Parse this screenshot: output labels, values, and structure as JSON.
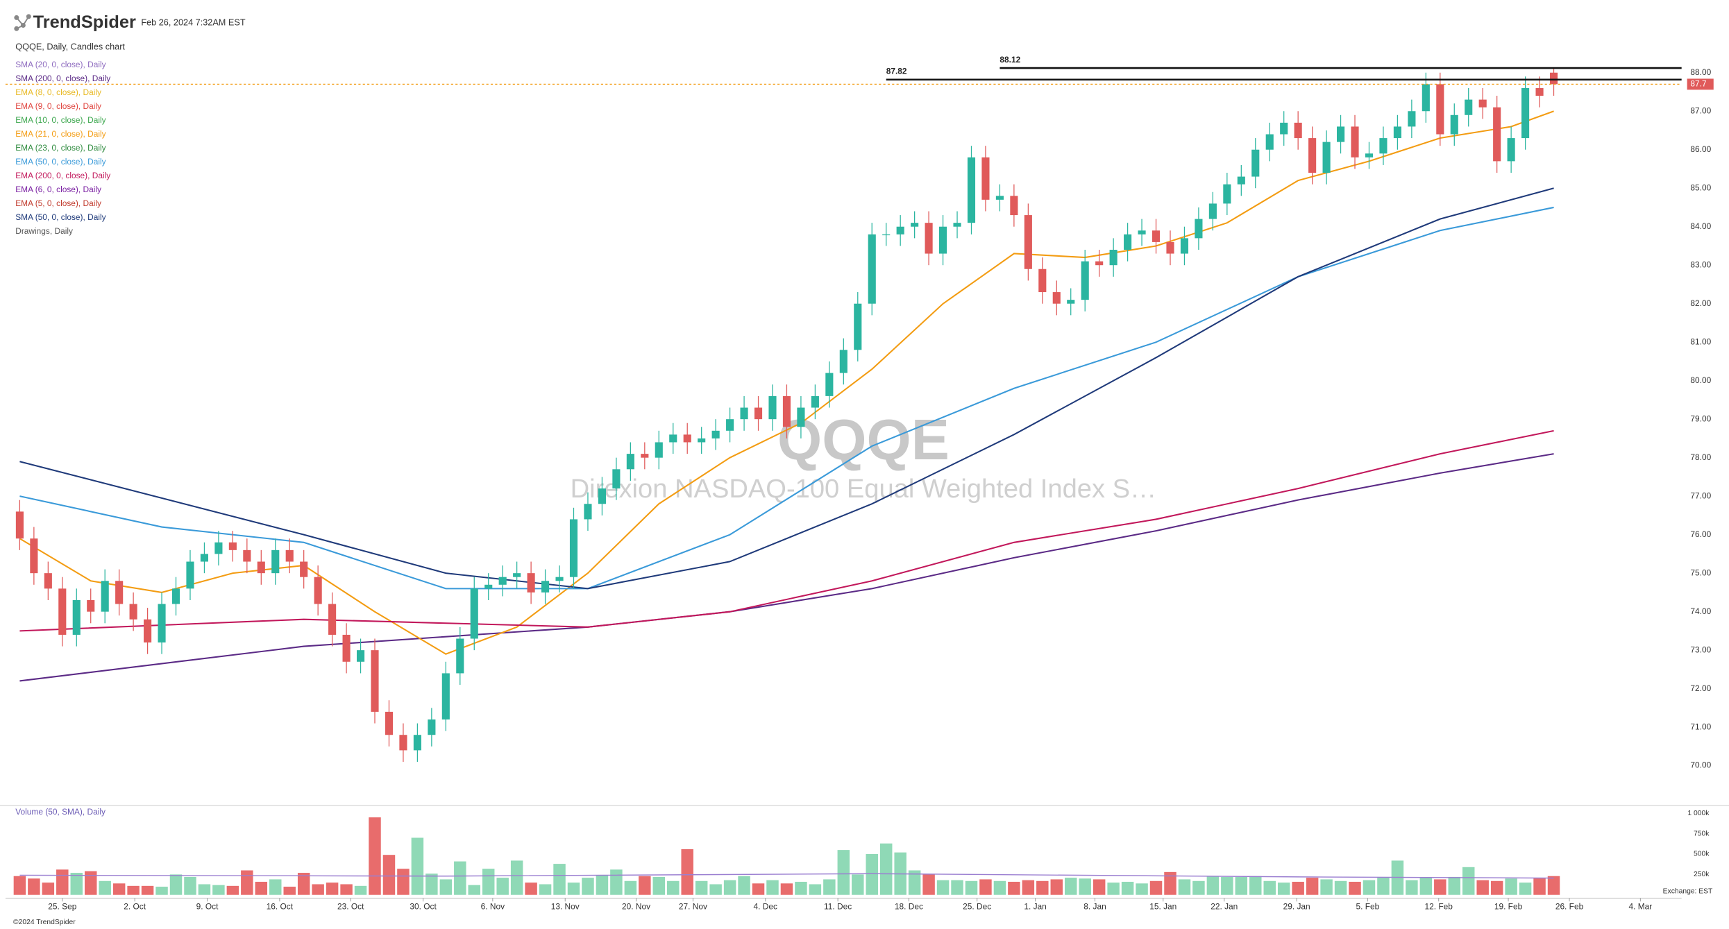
{
  "header": {
    "brand": "TrendSpider",
    "timestamp": "Feb 26, 2024 7:32AM EST",
    "chart_label": "QQQE, Daily, Candles chart",
    "exchange": "Exchange: EST",
    "footer": "©2024 TrendSpider"
  },
  "chart_data": [
    {
      "type": "candlestick",
      "title": "QQQE",
      "subtitle": "Direxion NASDAQ-100 Equal Weighted Index S…",
      "up_color": "#2bb5a0",
      "down_color": "#e05a5a",
      "open": [
        76.6,
        75.9,
        75.0,
        74.6,
        73.4,
        74.3,
        74.0,
        74.8,
        74.2,
        73.8,
        73.2,
        74.2,
        74.6,
        75.3,
        75.5,
        75.8,
        75.6,
        75.3,
        75.0,
        75.6,
        75.3,
        74.9,
        74.2,
        73.4,
        72.7,
        73.0,
        71.4,
        70.8,
        70.4,
        70.8,
        71.2,
        72.4,
        73.3,
        74.6,
        74.7,
        74.9,
        75.0,
        74.5,
        74.8,
        74.9,
        76.4,
        76.8,
        77.2,
        77.7,
        78.1,
        78.0,
        78.4,
        78.6,
        78.4,
        78.5,
        78.7,
        79.0,
        79.3,
        79.0,
        79.6,
        78.8,
        79.3,
        79.6,
        80.2,
        80.8,
        82.0,
        83.8,
        83.8,
        84.0,
        84.1,
        83.3,
        84.0,
        84.1,
        85.8,
        84.7,
        84.8,
        84.3,
        82.9,
        82.3,
        82.0,
        82.1,
        83.1,
        83.0,
        83.4,
        83.8,
        83.9,
        83.6,
        83.3,
        83.7,
        84.2,
        84.6,
        85.1,
        85.3,
        86.0,
        86.4,
        86.7,
        86.3,
        85.4,
        86.2,
        86.6,
        85.8,
        85.9,
        86.3,
        86.6,
        87.0,
        87.7,
        86.4,
        86.9,
        87.3,
        87.1,
        85.7,
        86.3,
        87.6,
        88.0
      ],
      "high": [
        76.9,
        76.2,
        75.3,
        74.9,
        74.6,
        74.6,
        75.1,
        75.1,
        74.5,
        74.1,
        74.5,
        74.9,
        75.6,
        75.8,
        76.1,
        76.1,
        75.9,
        75.6,
        75.9,
        75.9,
        75.6,
        75.2,
        74.5,
        73.7,
        73.3,
        73.3,
        71.7,
        71.1,
        71.1,
        71.5,
        72.7,
        73.6,
        74.9,
        75.0,
        75.2,
        75.3,
        75.3,
        75.1,
        75.2,
        76.7,
        77.1,
        77.5,
        78.0,
        78.4,
        78.4,
        78.7,
        78.9,
        78.9,
        78.8,
        79.0,
        79.3,
        79.6,
        79.6,
        79.9,
        79.9,
        79.6,
        79.9,
        80.5,
        81.1,
        82.3,
        84.1,
        84.1,
        84.3,
        84.4,
        84.4,
        84.3,
        84.4,
        86.1,
        86.1,
        85.1,
        85.1,
        84.6,
        83.2,
        82.6,
        82.4,
        83.4,
        83.4,
        83.7,
        84.1,
        84.2,
        84.2,
        83.9,
        84.0,
        84.5,
        84.9,
        85.4,
        85.6,
        86.3,
        86.7,
        87.0,
        87.0,
        86.6,
        86.5,
        86.9,
        86.9,
        86.2,
        86.6,
        86.9,
        87.3,
        88.0,
        88.0,
        87.2,
        87.6,
        87.6,
        87.4,
        86.6,
        87.9,
        87.9,
        88.1
      ],
      "low": [
        75.6,
        74.7,
        74.3,
        73.1,
        73.1,
        73.7,
        73.7,
        73.9,
        73.5,
        72.9,
        72.9,
        73.9,
        74.3,
        75.0,
        75.2,
        75.3,
        75.0,
        74.7,
        74.7,
        75.0,
        74.6,
        73.9,
        73.1,
        72.4,
        72.4,
        71.1,
        70.5,
        70.1,
        70.1,
        70.5,
        70.9,
        72.1,
        73.0,
        74.3,
        74.4,
        74.6,
        74.2,
        74.2,
        74.5,
        74.6,
        76.1,
        76.5,
        76.9,
        77.4,
        77.7,
        77.7,
        78.1,
        78.1,
        78.1,
        78.2,
        78.4,
        78.7,
        78.7,
        78.7,
        78.5,
        78.5,
        79.0,
        79.3,
        79.9,
        80.5,
        81.7,
        83.5,
        83.5,
        83.7,
        83.0,
        83.0,
        83.7,
        83.8,
        84.4,
        84.4,
        84.0,
        82.6,
        82.0,
        81.7,
        81.7,
        81.8,
        82.7,
        82.7,
        83.1,
        83.5,
        83.3,
        83.0,
        83.0,
        83.4,
        83.9,
        84.3,
        84.8,
        85.0,
        85.7,
        86.1,
        86.0,
        85.1,
        85.1,
        85.9,
        85.5,
        85.5,
        85.6,
        86.0,
        86.3,
        86.7,
        86.1,
        86.1,
        86.6,
        86.8,
        85.4,
        85.4,
        86.0,
        87.1,
        87.4
      ],
      "close": [
        75.9,
        75.0,
        74.6,
        73.4,
        74.3,
        74.0,
        74.8,
        74.2,
        73.8,
        73.2,
        74.2,
        74.6,
        75.3,
        75.5,
        75.8,
        75.6,
        75.3,
        75.0,
        75.6,
        75.3,
        74.9,
        74.2,
        73.4,
        72.7,
        73.0,
        71.4,
        70.8,
        70.4,
        70.8,
        71.2,
        72.4,
        73.3,
        74.6,
        74.7,
        74.9,
        75.0,
        74.5,
        74.8,
        74.9,
        76.4,
        76.8,
        77.2,
        77.7,
        78.1,
        78.0,
        78.4,
        78.6,
        78.4,
        78.5,
        78.7,
        79.0,
        79.3,
        79.0,
        79.6,
        78.8,
        79.3,
        79.6,
        80.2,
        80.8,
        82.0,
        83.8,
        83.8,
        84.0,
        84.1,
        83.3,
        84.0,
        84.1,
        85.8,
        84.7,
        84.8,
        84.3,
        82.9,
        82.3,
        82.0,
        82.1,
        83.1,
        83.0,
        83.4,
        83.8,
        83.9,
        83.6,
        83.3,
        83.7,
        84.2,
        84.6,
        85.1,
        85.3,
        86.0,
        86.4,
        86.7,
        86.3,
        85.4,
        86.2,
        86.6,
        85.8,
        85.9,
        86.3,
        86.6,
        87.0,
        87.7,
        86.4,
        86.9,
        87.3,
        87.1,
        85.7,
        86.3,
        87.6,
        87.4,
        87.7
      ],
      "last_color": "#e05a5a",
      "last_line_color": "#f39c12",
      "levels": [
        {
          "value": 87.82,
          "x": 61
        },
        {
          "value": 88.12,
          "x": 69
        }
      ],
      "series": [
        {
          "name": "SMA (20, 0, close), Daily",
          "color": "#8e6bbf"
        },
        {
          "name": "SMA (200, 0, close), Daily",
          "color": "#5b2a86",
          "x": [
            0,
            20,
            40,
            50,
            60,
            70,
            80,
            90,
            100,
            108
          ],
          "values": [
            72.2,
            73.1,
            73.6,
            74.0,
            74.6,
            75.4,
            76.1,
            76.9,
            77.6,
            78.1
          ]
        },
        {
          "name": "EMA (8, 0, close), Daily",
          "color": "#e8b923"
        },
        {
          "name": "EMA (9, 0, close), Daily",
          "color": "#e0443e"
        },
        {
          "name": "EMA (10, 0, close), Daily",
          "color": "#3aa64c"
        },
        {
          "name": "EMA (21, 0, close), Daily",
          "color": "#f39c12",
          "x": [
            0,
            5,
            10,
            15,
            20,
            25,
            30,
            35,
            40,
            45,
            50,
            55,
            60,
            65,
            70,
            75,
            80,
            85,
            90,
            95,
            100,
            105,
            108
          ],
          "values": [
            75.9,
            74.8,
            74.5,
            75.0,
            75.2,
            74.0,
            72.9,
            73.6,
            75.0,
            76.8,
            78.0,
            78.9,
            80.3,
            82.0,
            83.3,
            83.2,
            83.5,
            84.1,
            85.2,
            85.7,
            86.3,
            86.6,
            87.0
          ]
        },
        {
          "name": "EMA (23, 0, close), Daily",
          "color": "#2e8b3e"
        },
        {
          "name": "EMA (50, 0, close), Daily",
          "color": "#3a9ad9",
          "x": [
            0,
            10,
            20,
            30,
            40,
            50,
            60,
            70,
            80,
            90,
            100,
            108
          ],
          "values": [
            77.0,
            76.2,
            75.8,
            74.6,
            74.6,
            76.0,
            78.3,
            79.8,
            81.0,
            82.7,
            83.9,
            84.5
          ]
        },
        {
          "name": "EMA (200, 0, close), Daily",
          "color": "#c2185b",
          "x": [
            0,
            20,
            40,
            50,
            60,
            70,
            80,
            90,
            100,
            108
          ],
          "values": [
            73.5,
            73.8,
            73.6,
            74.0,
            74.8,
            75.8,
            76.4,
            77.2,
            78.1,
            78.7
          ]
        },
        {
          "name": "EMA (6, 0, close), Daily",
          "color": "#7a1fa2"
        },
        {
          "name": "EMA (5, 0, close), Daily",
          "color": "#c0392b"
        },
        {
          "name": "SMA (50, 0, close), Daily",
          "color": "#1f3a7a",
          "x": [
            0,
            20,
            30,
            40,
            50,
            60,
            70,
            80,
            90,
            100,
            108
          ],
          "values": [
            77.9,
            76.0,
            75.0,
            74.6,
            75.3,
            76.8,
            78.6,
            80.6,
            82.7,
            84.2,
            85.0
          ]
        },
        {
          "name": "Drawings, Daily",
          "color": "#555555"
        }
      ],
      "xlim": [
        -1,
        117
      ],
      "ylim": [
        69.05,
        88.17
      ],
      "yticks": [
        {
          "value": 70,
          "label": "70.00"
        },
        {
          "value": 71,
          "label": "71.00"
        },
        {
          "value": 72,
          "label": "72.00"
        },
        {
          "value": 73,
          "label": "73.00"
        },
        {
          "value": 74,
          "label": "74.00"
        },
        {
          "value": 75,
          "label": "75.00"
        },
        {
          "value": 76,
          "label": "76.00"
        },
        {
          "value": 77,
          "label": "77.00"
        },
        {
          "value": 78,
          "label": "78.00"
        },
        {
          "value": 79,
          "label": "79.00"
        },
        {
          "value": 80,
          "label": "80.00"
        },
        {
          "value": 81,
          "label": "81.00"
        },
        {
          "value": 82,
          "label": "82.00"
        },
        {
          "value": 83,
          "label": "83.00"
        },
        {
          "value": 84,
          "label": "84.00"
        },
        {
          "value": 85,
          "label": "85.00"
        },
        {
          "value": 86,
          "label": "86.00"
        },
        {
          "value": 87,
          "label": "87.00"
        },
        {
          "value": 88,
          "label": "88.00"
        }
      ],
      "grid": false
    },
    {
      "type": "bar",
      "title": "Volume (50, SMA), Daily",
      "values": [
        230,
        200,
        150,
        310,
        270,
        290,
        170,
        140,
        110,
        110,
        100,
        250,
        220,
        130,
        120,
        110,
        300,
        160,
        190,
        100,
        270,
        130,
        150,
        130,
        110,
        950,
        490,
        320,
        700,
        260,
        190,
        410,
        120,
        320,
        210,
        420,
        150,
        130,
        380,
        150,
        210,
        240,
        310,
        170,
        230,
        220,
        170,
        560,
        170,
        130,
        180,
        230,
        140,
        180,
        140,
        160,
        130,
        190,
        550,
        250,
        500,
        630,
        520,
        300,
        250,
        180,
        180,
        170,
        190,
        170,
        160,
        180,
        170,
        190,
        210,
        200,
        190,
        150,
        160,
        140,
        170,
        280,
        190,
        170,
        230,
        220,
        220,
        230,
        170,
        150,
        160,
        210,
        190,
        170,
        160,
        180,
        210,
        420,
        180,
        210,
        190,
        220,
        340,
        180,
        170,
        200,
        150,
        210,
        230
      ],
      "series": [
        {
          "color": "#9b7fd1",
          "x": [
            0,
            30,
            60,
            90,
            108
          ],
          "values": [
            240,
            230,
            260,
            220,
            205
          ]
        }
      ],
      "ylim": [
        0,
        1000
      ],
      "yticks": [
        {
          "value": 250,
          "label": "250k"
        },
        {
          "value": 500,
          "label": "500k"
        },
        {
          "value": 750,
          "label": "750k"
        },
        {
          "value": 1000,
          "label": "1 000k"
        }
      ],
      "xlim": [
        -1,
        117
      ],
      "xticks": [
        {
          "value": 3.0,
          "label": "25. Sep"
        },
        {
          "value": 8.1,
          "label": "2. Oct"
        },
        {
          "value": 13.2,
          "label": "9. Oct"
        },
        {
          "value": 18.3,
          "label": "16. Oct"
        },
        {
          "value": 23.3,
          "label": "23. Oct"
        },
        {
          "value": 28.4,
          "label": "30. Oct"
        },
        {
          "value": 33.3,
          "label": "6. Nov"
        },
        {
          "value": 38.4,
          "label": "13. Nov"
        },
        {
          "value": 43.4,
          "label": "20. Nov"
        },
        {
          "value": 47.4,
          "label": "27. Nov"
        },
        {
          "value": 52.5,
          "label": "4. Dec"
        },
        {
          "value": 57.6,
          "label": "11. Dec"
        },
        {
          "value": 62.6,
          "label": "18. Dec"
        },
        {
          "value": 67.4,
          "label": "25. Dec"
        },
        {
          "value": 71.5,
          "label": "1. Jan"
        },
        {
          "value": 75.7,
          "label": "8. Jan"
        },
        {
          "value": 80.5,
          "label": "15. Jan"
        },
        {
          "value": 84.8,
          "label": "22. Jan"
        },
        {
          "value": 89.9,
          "label": "29. Jan"
        },
        {
          "value": 94.9,
          "label": "5. Feb"
        },
        {
          "value": 99.9,
          "label": "12. Feb"
        },
        {
          "value": 104.8,
          "label": "19. Feb"
        },
        {
          "value": 109.1,
          "label": "26. Feb"
        },
        {
          "value": 114.1,
          "label": "4. Mar"
        }
      ]
    }
  ]
}
